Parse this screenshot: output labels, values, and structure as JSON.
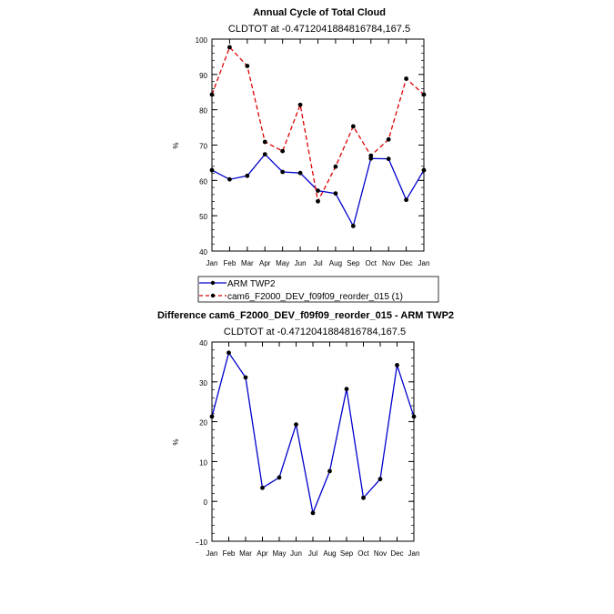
{
  "chart_data": [
    {
      "type": "line",
      "title": "Annual Cycle of Total Cloud",
      "subtitle": "CLDTOT at -0.4712041884816784,167.5",
      "xlabel": "",
      "ylabel": "%",
      "categories": [
        "Jan",
        "Feb",
        "Mar",
        "Apr",
        "May",
        "Jun",
        "Jul",
        "Aug",
        "Sep",
        "Oct",
        "Nov",
        "Dec",
        "Jan"
      ],
      "ylim": [
        40,
        100
      ],
      "yticks": [
        40,
        50,
        60,
        70,
        80,
        90,
        100
      ],
      "series": [
        {
          "name": "ARM TWP2",
          "color": "#0000cc",
          "dash": "solid",
          "values": [
            62.9,
            60.3,
            61.3,
            67.4,
            62.4,
            62.1,
            57.1,
            56.3,
            47.1,
            66.2,
            66.1,
            54.5,
            62.9
          ]
        },
        {
          "name": "cam6_F2000_DEV_f09f09_reorder_015 (1)",
          "color": "#dd0000",
          "dash": "dashed",
          "values": [
            84.3,
            97.7,
            92.4,
            70.9,
            68.3,
            81.4,
            54.1,
            63.9,
            75.3,
            67.0,
            71.6,
            88.8,
            84.3
          ]
        }
      ]
    },
    {
      "type": "line",
      "title": "Difference cam6_F2000_DEV_f09f09_reorder_015 - ARM TWP2",
      "subtitle": "CLDTOT at -0.4712041884816784,167.5",
      "xlabel": "",
      "ylabel": "%",
      "categories": [
        "Jan",
        "Feb",
        "Mar",
        "Apr",
        "May",
        "Jun",
        "Jul",
        "Aug",
        "Sep",
        "Oct",
        "Nov",
        "Dec",
        "Jan"
      ],
      "ylim": [
        -10,
        40
      ],
      "yticks": [
        -10,
        0,
        10,
        20,
        30,
        40
      ],
      "series": [
        {
          "name": "Difference",
          "color": "#0000cc",
          "dash": "solid",
          "values": [
            21.3,
            37.3,
            31.1,
            3.4,
            6.0,
            19.3,
            -2.9,
            7.6,
            28.2,
            0.9,
            5.6,
            34.2,
            21.3
          ]
        }
      ]
    }
  ]
}
